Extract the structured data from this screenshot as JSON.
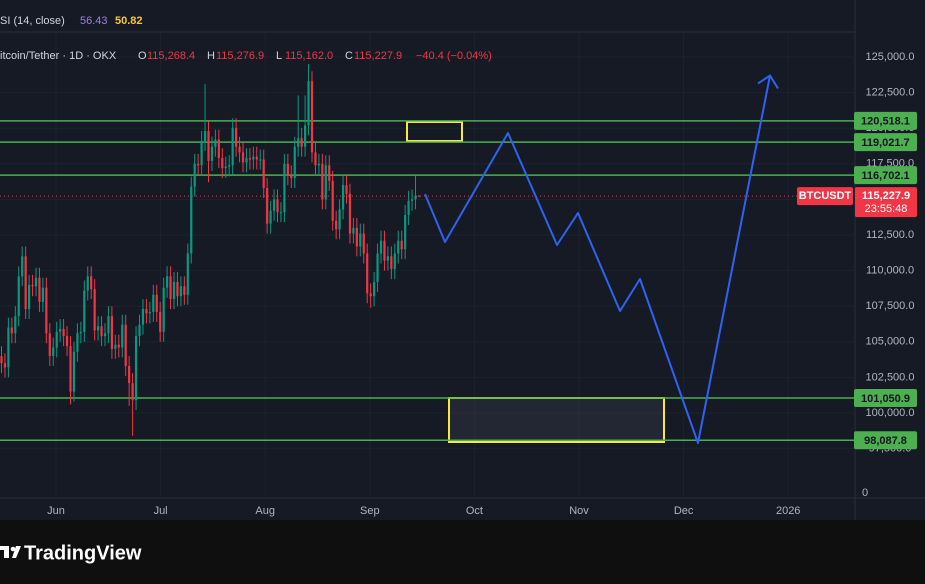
{
  "chart_data": {
    "type": "candlestick",
    "header": {
      "indicator": "SI (14, close)",
      "rsi_values": [
        "56.43",
        "50.82"
      ],
      "symbol": "itcoin/Tether · 1D · OKX",
      "ohlc": [
        {
          "key": "O",
          "value": "115,268.4"
        },
        {
          "key": "H",
          "value": "115,276.9"
        },
        {
          "key": "L",
          "value": "115,162.0"
        },
        {
          "key": "C",
          "value": "115,227.9"
        }
      ],
      "change": "−40.4 (−0.04%)"
    },
    "categories": [
      "Jun",
      "Jul",
      "Aug",
      "Sep",
      "Oct",
      "Nov",
      "Dec",
      "2026"
    ],
    "ylim": [
      95500,
      127000
    ],
    "yticks": [
      {
        "value": 125000,
        "label": "125,000.0"
      },
      {
        "value": 122500,
        "label": "122,500.0"
      },
      {
        "value": 120000,
        "label": "120,000.0"
      },
      {
        "value": 117500,
        "label": "117,500.0"
      },
      {
        "value": 115000,
        "label": "115,000.0"
      },
      {
        "value": 112500,
        "label": "112,500.0"
      },
      {
        "value": 110000,
        "label": "110,000.0"
      },
      {
        "value": 107500,
        "label": "107,500.0"
      },
      {
        "value": 105000,
        "label": "105,000.0"
      },
      {
        "value": 102500,
        "label": "102,500.0"
      },
      {
        "value": 100000,
        "label": "100,000.0"
      },
      {
        "value": 97500,
        "label": "97,500.0"
      }
    ],
    "volume_yticks": [
      0
    ],
    "up_color": "#089981",
    "down_color": "#f23645",
    "open": [
      104000,
      103500,
      103200,
      106000,
      105600,
      106800,
      109600,
      111000,
      107300,
      109000,
      108900,
      109500,
      107800,
      108800,
      105600,
      104000,
      104600,
      105700,
      105900,
      105400,
      104700,
      101500,
      104300,
      105600,
      105700,
      108600,
      109600,
      108700,
      105800,
      106100,
      105400,
      105600,
      106800,
      104500,
      104800,
      104600,
      106200,
      103300,
      102100,
      100900,
      105400,
      106200,
      107300,
      107000,
      107100,
      108300,
      107100,
      105700,
      108800,
      109600,
      108000,
      109200,
      108200,
      108900,
      108300,
      111200,
      115900,
      117500,
      117400,
      119100,
      119800,
      117700,
      118700,
      119200,
      117900,
      117200,
      117300,
      117400,
      120000,
      118700,
      118300,
      117600,
      117900,
      117800,
      118000,
      117800,
      117800,
      115800,
      113300,
      114200,
      115000,
      114100,
      114100,
      117500,
      116700,
      116500,
      118700,
      119300,
      118700,
      120200,
      123300,
      118300,
      117400,
      117500,
      115000,
      117400,
      116300,
      113500,
      112900,
      114300,
      116000,
      115400,
      112600,
      113000,
      111700,
      112600,
      111200,
      108400,
      108200,
      109200,
      111200,
      112100,
      110700,
      111000,
      110100,
      111200,
      112100,
      111500,
      113900,
      114900,
      115000,
      115268.4
    ],
    "high": [
      104700,
      104200,
      106700,
      106700,
      107500,
      110300,
      111700,
      111700,
      109700,
      109700,
      110200,
      110200,
      109500,
      109500,
      106300,
      105300,
      106400,
      106600,
      106600,
      106100,
      105400,
      105000,
      106300,
      106400,
      109300,
      110300,
      110300,
      109400,
      106800,
      106800,
      106300,
      107500,
      107500,
      105500,
      105500,
      106900,
      106900,
      104000,
      102800,
      106100,
      106900,
      108000,
      108000,
      107800,
      109000,
      109000,
      107800,
      109500,
      110300,
      110300,
      109900,
      109900,
      109600,
      109600,
      111900,
      116600,
      118200,
      118200,
      119800,
      123100,
      120500,
      119400,
      119900,
      119900,
      118600,
      118000,
      118100,
      120700,
      120700,
      119400,
      119000,
      118600,
      118600,
      118700,
      118700,
      118500,
      118500,
      116500,
      114900,
      115700,
      115700,
      114800,
      118200,
      118200,
      117400,
      119400,
      122300,
      120000,
      122300,
      124500,
      124000,
      119000,
      118200,
      118200,
      118100,
      118100,
      117000,
      114200,
      115000,
      116700,
      116700,
      116100,
      113700,
      113700,
      113300,
      113300,
      111900,
      109100,
      109900,
      111900,
      112800,
      112800,
      111700,
      111700,
      111900,
      112800,
      112800,
      114600,
      115600,
      115700,
      116700,
      115276.9
    ],
    "low": [
      102800,
      102500,
      102500,
      104900,
      104900,
      106100,
      108900,
      106600,
      106600,
      108200,
      108200,
      107100,
      107100,
      104900,
      103300,
      103300,
      103900,
      105000,
      104700,
      104000,
      100600,
      100800,
      103600,
      104900,
      105000,
      107900,
      108000,
      105100,
      105100,
      104700,
      104700,
      104900,
      103800,
      103800,
      103900,
      103900,
      102600,
      100500,
      98400,
      100200,
      104700,
      105500,
      106300,
      106300,
      106400,
      106400,
      105000,
      105000,
      108100,
      107300,
      107300,
      107500,
      107500,
      107600,
      107600,
      110500,
      115200,
      116700,
      116700,
      118400,
      116200,
      117000,
      118000,
      117200,
      116500,
      116500,
      116600,
      116700,
      118000,
      117600,
      116900,
      116900,
      117100,
      117100,
      117100,
      117100,
      115100,
      112600,
      112600,
      113500,
      113400,
      113400,
      113400,
      116000,
      115800,
      115800,
      118000,
      118000,
      118000,
      119500,
      117600,
      116700,
      116700,
      114300,
      114300,
      115600,
      112800,
      112200,
      112200,
      113600,
      114700,
      111900,
      111900,
      111000,
      111000,
      110500,
      107700,
      107400,
      107500,
      108500,
      110500,
      110000,
      110000,
      109400,
      109400,
      110500,
      110800,
      110800,
      113200,
      114200,
      114300,
      115162.0
    ],
    "close": [
      103500,
      103200,
      106000,
      105600,
      106800,
      109600,
      111000,
      107300,
      109000,
      108900,
      109500,
      107800,
      108800,
      105600,
      104000,
      104600,
      105700,
      105900,
      105400,
      104700,
      101500,
      104300,
      105600,
      105700,
      108600,
      109600,
      108700,
      105800,
      106100,
      105400,
      105600,
      106800,
      104500,
      104800,
      104600,
      106200,
      103300,
      102100,
      100900,
      105400,
      106200,
      107300,
      107000,
      107100,
      108300,
      107100,
      105700,
      108800,
      109600,
      108000,
      109200,
      108200,
      108900,
      108300,
      111200,
      115900,
      117500,
      117400,
      119100,
      119800,
      117700,
      118700,
      119200,
      117900,
      117200,
      117300,
      117400,
      120000,
      118700,
      118300,
      117600,
      117900,
      117800,
      118000,
      117800,
      117800,
      115800,
      113300,
      114200,
      115000,
      114100,
      114100,
      117500,
      116700,
      116500,
      118700,
      119300,
      118700,
      120200,
      123300,
      118300,
      117400,
      117500,
      115000,
      117400,
      116300,
      113500,
      112900,
      114300,
      116000,
      115400,
      112600,
      113000,
      111700,
      112600,
      111200,
      108400,
      108200,
      109200,
      111200,
      112100,
      110700,
      111000,
      110100,
      111200,
      112100,
      111500,
      113900,
      114900,
      115000,
      115268.4,
      115227.9
    ],
    "levels": [
      {
        "value": 120518.1,
        "label": "120,518.1"
      },
      {
        "value": 119021.7,
        "label": "119,021.7"
      },
      {
        "value": 116702.1,
        "label": "116,702.1"
      },
      {
        "value": 101050.9,
        "label": "101,050.9"
      },
      {
        "value": 98087.8,
        "label": "98,087.8"
      }
    ],
    "level_color": "#4caf50",
    "last_price": {
      "value": 115227.9,
      "label": "115,227.9",
      "symbol": "BTCUSDT",
      "countdown": "23:55:48",
      "color": "#f23645"
    },
    "zones": [
      {
        "top": 120435,
        "bottom": 119101
      },
      {
        "top": 101053,
        "bottom": 97963
      }
    ],
    "zone_color": "#f5e94a",
    "projection": {
      "color": "#2f62f0",
      "values": [
        115379,
        112008,
        119663,
        111798,
        114045,
        107163,
        109410,
        97893,
        123700
      ]
    },
    "brand": "TradingView"
  }
}
